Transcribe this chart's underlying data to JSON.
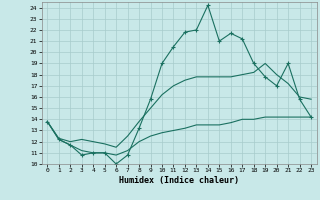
{
  "title": "",
  "xlabel": "Humidex (Indice chaleur)",
  "xlim": [
    -0.5,
    23.5
  ],
  "ylim": [
    10,
    24.5
  ],
  "yticks": [
    10,
    11,
    12,
    13,
    14,
    15,
    16,
    17,
    18,
    19,
    20,
    21,
    22,
    23,
    24
  ],
  "xticks": [
    0,
    1,
    2,
    3,
    4,
    5,
    6,
    7,
    8,
    9,
    10,
    11,
    12,
    13,
    14,
    15,
    16,
    17,
    18,
    19,
    20,
    21,
    22,
    23
  ],
  "line_color": "#1a7060",
  "bg_color": "#c8e8e8",
  "grid_color": "#a8cccc",
  "line1_x": [
    0,
    1,
    2,
    3,
    4,
    5,
    6,
    7,
    8,
    9,
    10,
    11,
    12,
    13,
    14,
    15,
    16,
    17,
    18,
    19,
    20,
    21,
    22,
    23
  ],
  "line1_y": [
    13.8,
    12.2,
    11.7,
    10.8,
    11.0,
    11.0,
    10.0,
    10.8,
    13.2,
    15.8,
    19.0,
    20.5,
    21.8,
    22.0,
    24.2,
    21.0,
    21.7,
    21.2,
    19.0,
    17.8,
    17.0,
    19.0,
    15.8,
    14.2
  ],
  "line2_x": [
    0,
    1,
    2,
    3,
    4,
    5,
    6,
    7,
    8,
    9,
    10,
    11,
    12,
    13,
    14,
    15,
    16,
    17,
    18,
    19,
    20,
    21,
    22,
    23
  ],
  "line2_y": [
    13.8,
    12.3,
    12.0,
    12.2,
    12.0,
    11.8,
    11.5,
    12.5,
    13.8,
    15.0,
    16.2,
    17.0,
    17.5,
    17.8,
    17.8,
    17.8,
    17.8,
    18.0,
    18.2,
    19.0,
    18.0,
    17.2,
    16.0,
    15.8
  ],
  "line3_x": [
    0,
    1,
    2,
    3,
    4,
    5,
    6,
    7,
    8,
    9,
    10,
    11,
    12,
    13,
    14,
    15,
    16,
    17,
    18,
    19,
    20,
    21,
    22,
    23
  ],
  "line3_y": [
    13.8,
    12.2,
    11.7,
    11.2,
    11.0,
    11.0,
    10.8,
    11.2,
    12.0,
    12.5,
    12.8,
    13.0,
    13.2,
    13.5,
    13.5,
    13.5,
    13.7,
    14.0,
    14.0,
    14.2,
    14.2,
    14.2,
    14.2,
    14.2
  ]
}
